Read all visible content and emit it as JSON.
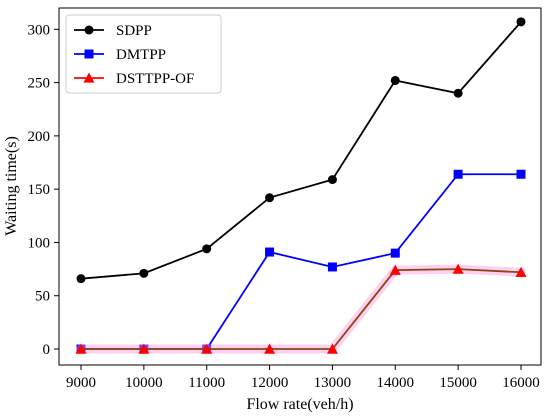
{
  "chart_data": {
    "type": "line",
    "xlabel": "Flow rate(veh/h)",
    "ylabel": "Waiting time(s)",
    "x": [
      9000,
      10000,
      11000,
      12000,
      13000,
      14000,
      15000,
      16000
    ],
    "xticks": [
      "9000",
      "10000",
      "11000",
      "12000",
      "13000",
      "14000",
      "15000",
      "16000"
    ],
    "yticks": [
      0,
      50,
      100,
      150,
      200,
      250,
      300
    ],
    "ylim": [
      -15,
      320
    ],
    "grid": false,
    "legend_position": "top-left",
    "series": [
      {
        "name": "SDPP",
        "color": "#000000",
        "marker": "circle",
        "values": [
          66,
          71,
          94,
          142,
          159,
          252,
          240,
          307
        ]
      },
      {
        "name": "DMTPP",
        "color": "#0000ff",
        "marker": "square",
        "values": [
          0,
          0,
          0,
          91,
          77,
          90,
          164,
          164
        ]
      },
      {
        "name": "DSTTPP-OF",
        "color": "#ff0000",
        "line_color": "#8b4513",
        "marker": "triangle",
        "values": [
          0,
          0,
          0,
          0,
          0,
          74,
          75,
          72
        ]
      }
    ]
  }
}
